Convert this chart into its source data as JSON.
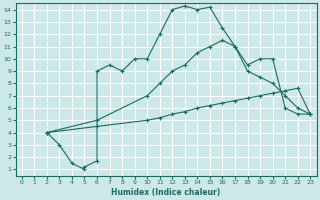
{
  "xlabel": "Humidex (Indice chaleur)",
  "bg_color": "#cce8e8",
  "grid_color": "#ffffff",
  "line_color": "#1a6b60",
  "xlim": [
    -0.5,
    23.5
  ],
  "ylim": [
    0.5,
    14.5
  ],
  "xticks": [
    0,
    1,
    2,
    3,
    4,
    5,
    6,
    7,
    8,
    9,
    10,
    11,
    12,
    13,
    14,
    15,
    16,
    17,
    18,
    19,
    20,
    21,
    22,
    23
  ],
  "yticks": [
    1,
    2,
    3,
    4,
    5,
    6,
    7,
    8,
    9,
    10,
    11,
    12,
    13,
    14
  ],
  "line1_x": [
    2,
    3,
    4,
    5,
    5,
    6,
    6,
    7,
    8,
    9,
    10,
    11,
    12,
    13,
    14,
    15,
    16,
    17,
    18,
    19,
    20,
    21,
    22,
    23
  ],
  "line1_y": [
    4,
    3,
    1.5,
    1,
    1.2,
    1.7,
    9,
    9.5,
    9,
    10,
    10,
    12,
    14,
    14.3,
    14,
    14.2,
    12.5,
    11,
    9.5,
    10,
    10,
    6,
    5.5,
    5.5
  ],
  "line2_x": [
    2,
    6,
    10,
    11,
    12,
    13,
    14,
    15,
    16,
    17,
    18,
    19,
    20,
    21,
    22,
    23
  ],
  "line2_y": [
    4,
    5,
    7,
    8,
    9,
    9.5,
    10.5,
    11,
    11.5,
    11,
    9,
    8.5,
    8,
    7,
    6,
    5.5
  ],
  "line3_x": [
    2,
    6,
    10,
    11,
    12,
    13,
    14,
    15,
    16,
    17,
    18,
    19,
    20,
    21,
    22,
    23
  ],
  "line3_y": [
    4,
    4.5,
    5,
    5.2,
    5.5,
    5.7,
    6,
    6.2,
    6.4,
    6.6,
    6.8,
    7,
    7.2,
    7.4,
    7.6,
    5.5
  ]
}
